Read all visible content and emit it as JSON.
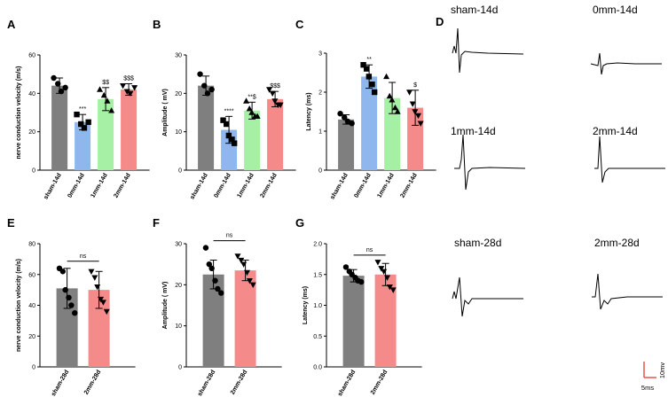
{
  "figure": {
    "panel_d_label": "D",
    "traces": [
      {
        "label": "sham-14d",
        "shape": "sham14"
      },
      {
        "label": "0mm-14d",
        "shape": "zero14"
      },
      {
        "label": "1mm-14d",
        "shape": "one14"
      },
      {
        "label": "2mm-14d",
        "shape": "two14"
      },
      {
        "label": "sham-28d",
        "shape": "sham28"
      },
      {
        "label": "2mm-28d",
        "shape": "two28"
      }
    ],
    "scale_bar": {
      "vertical_label": "10mv",
      "horizontal_label": "5ms",
      "color": "#e53935"
    }
  },
  "chart_data": [
    {
      "id": "A",
      "type": "bar",
      "letter": "A",
      "ylabel": "nerve conduction velocity (m/s)",
      "ylim": [
        0,
        60
      ],
      "yticks": [
        0,
        20,
        40,
        60
      ],
      "categories": [
        "sham-14d",
        "0mm-14d",
        "1mm-14d",
        "2mm-14d"
      ],
      "values": [
        44,
        25,
        37,
        42
      ],
      "errors": [
        4,
        4,
        6,
        3
      ],
      "colors": [
        "#7f7f7f",
        "#8fb7ee",
        "#a6f0a6",
        "#f58a8a"
      ],
      "markers": [
        "circle",
        "square",
        "triangle",
        "invtriangle"
      ],
      "points": [
        [
          48,
          45,
          41,
          43
        ],
        [
          29,
          24,
          22,
          25
        ],
        [
          42,
          39,
          36,
          31
        ],
        [
          44,
          41,
          40,
          43
        ]
      ],
      "significance": [
        "",
        "***",
        "$$",
        "$$$"
      ]
    },
    {
      "id": "B",
      "type": "bar",
      "letter": "B",
      "ylabel": "Amplitude ( mV)",
      "ylim": [
        0,
        30
      ],
      "yticks": [
        0,
        10,
        20,
        30
      ],
      "categories": [
        "sham-14d",
        "0mm-14d",
        "1mm-14d",
        "2mm-14d"
      ],
      "values": [
        22,
        10.5,
        15.5,
        18.5
      ],
      "errors": [
        2.5,
        3.5,
        2.2,
        2
      ],
      "colors": [
        "#7f7f7f",
        "#8fb7ee",
        "#a6f0a6",
        "#f58a8a"
      ],
      "markers": [
        "circle",
        "square",
        "triangle",
        "invtriangle"
      ],
      "points": [
        [
          25,
          22,
          20,
          21
        ],
        [
          13,
          12,
          9,
          8,
          7
        ],
        [
          18,
          16,
          15,
          14,
          14
        ],
        [
          21,
          20,
          18,
          17,
          17
        ]
      ],
      "significance": [
        "",
        "****",
        "**$",
        "$$$"
      ]
    },
    {
      "id": "C",
      "type": "bar",
      "letter": "C",
      "ylabel": "Latency (ms)",
      "ylim": [
        0,
        3
      ],
      "yticks": [
        0,
        1,
        2,
        3
      ],
      "categories": [
        "sham-14d",
        "0mm-14d",
        "1mm-14d",
        "2mm-14d"
      ],
      "values": [
        1.3,
        2.4,
        1.85,
        1.6
      ],
      "errors": [
        0.12,
        0.3,
        0.4,
        0.45
      ],
      "colors": [
        "#7f7f7f",
        "#8fb7ee",
        "#a6f0a6",
        "#f58a8a"
      ],
      "markers": [
        "circle",
        "square",
        "triangle",
        "invtriangle"
      ],
      "points": [
        [
          1.45,
          1.35,
          1.25,
          1.2
        ],
        [
          2.7,
          2.6,
          2.4,
          2.2,
          2.0
        ],
        [
          2.4,
          1.9,
          1.8,
          1.6,
          1.5
        ],
        [
          2.0,
          1.7,
          1.5,
          1.4,
          1.2
        ]
      ],
      "significance": [
        "",
        "**",
        "",
        "$"
      ]
    },
    {
      "id": "E",
      "type": "bar",
      "letter": "E",
      "ylabel": "nerve conduction velocity (m/s)",
      "ylim": [
        0,
        80
      ],
      "yticks": [
        0,
        20,
        40,
        60,
        80
      ],
      "categories": [
        "sham-28d",
        "2mm-28d"
      ],
      "values": [
        51,
        50
      ],
      "errors": [
        13,
        12
      ],
      "colors": [
        "#7f7f7f",
        "#f58a8a"
      ],
      "markers": [
        "circle",
        "invtriangle"
      ],
      "points": [
        [
          64,
          62,
          50,
          45,
          40,
          35
        ],
        [
          62,
          58,
          52,
          44,
          42,
          36
        ]
      ],
      "bracket": "ns"
    },
    {
      "id": "F",
      "type": "bar",
      "letter": "F",
      "ylabel": "Amplitude ( mV)",
      "ylim": [
        0,
        30
      ],
      "yticks": [
        0,
        10,
        20,
        30
      ],
      "categories": [
        "sham-28d",
        "2mm-28d"
      ],
      "values": [
        22.5,
        23.5
      ],
      "errors": [
        3.5,
        2.5
      ],
      "colors": [
        "#7f7f7f",
        "#f58a8a"
      ],
      "markers": [
        "circle",
        "invtriangle"
      ],
      "points": [
        [
          29,
          25,
          24,
          21,
          19,
          18
        ],
        [
          27,
          26,
          25,
          23,
          21,
          20
        ]
      ],
      "bracket": "ns"
    },
    {
      "id": "G",
      "type": "bar",
      "letter": "G",
      "ylabel": "Latency (ms)",
      "ylim": [
        0,
        2.0
      ],
      "yticks": [
        0.0,
        0.5,
        1.0,
        1.5,
        2.0
      ],
      "tick_decimals": 1,
      "categories": [
        "sham-28d",
        "2mm-28d"
      ],
      "values": [
        1.48,
        1.5
      ],
      "errors": [
        0.1,
        0.18
      ],
      "colors": [
        "#7f7f7f",
        "#f58a8a"
      ],
      "markers": [
        "circle",
        "invtriangle"
      ],
      "points": [
        [
          1.62,
          1.55,
          1.5,
          1.45,
          1.4,
          1.38
        ],
        [
          1.7,
          1.6,
          1.55,
          1.45,
          1.3,
          1.25
        ]
      ],
      "bracket": "ns"
    }
  ]
}
